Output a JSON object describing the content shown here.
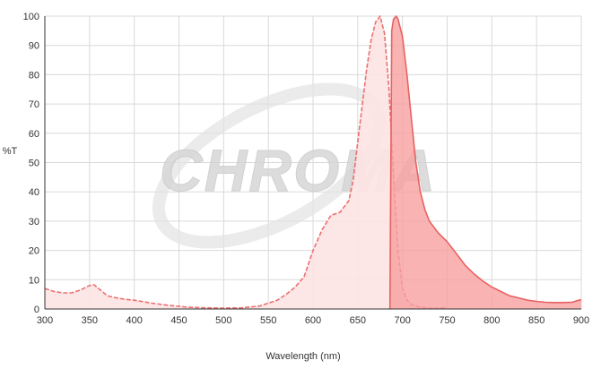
{
  "watermark": {
    "text": "CHROMA"
  },
  "colors": {
    "excitation_line": "#ec7070",
    "excitation_fill": "#fde3e3",
    "emission_line": "#e86262",
    "emission_fill": "#f8a0a0",
    "grid": "#d9d9d9",
    "axis": "#333333"
  },
  "chart_data": {
    "type": "area",
    "xlabel": "Wavelength (nm)",
    "ylabel": "%T",
    "xlim": [
      300,
      900
    ],
    "ylim": [
      0,
      100
    ],
    "x_ticks": [
      300,
      350,
      400,
      450,
      500,
      550,
      600,
      650,
      700,
      750,
      800,
      850,
      900
    ],
    "y_ticks": [
      0,
      10,
      20,
      30,
      40,
      50,
      60,
      70,
      80,
      90,
      100
    ],
    "grid": true,
    "legend": "none",
    "series": [
      {
        "style": "dashed",
        "x": [
          300,
          310,
          320,
          330,
          340,
          350,
          355,
          360,
          370,
          380,
          390,
          400,
          420,
          440,
          460,
          480,
          500,
          520,
          540,
          560,
          570,
          580,
          590,
          600,
          610,
          620,
          630,
          640,
          645,
          650,
          660,
          665,
          670,
          675,
          680,
          685,
          690,
          695,
          700,
          705,
          710,
          720,
          730,
          740,
          750
        ],
        "y": [
          7,
          6,
          5.5,
          5.5,
          6.5,
          8,
          8.3,
          7,
          4.5,
          3.8,
          3.3,
          3,
          2,
          1.2,
          0.6,
          0.4,
          0.3,
          0.4,
          1,
          3,
          5,
          7.5,
          11,
          20,
          27,
          32,
          33,
          37,
          44,
          57,
          82,
          92,
          98,
          100,
          94,
          75,
          45,
          20,
          7,
          3,
          1.5,
          0.6,
          0.3,
          0.3,
          0.5
        ]
      },
      {
        "style": "solid",
        "x": [
          686,
          688,
          690,
          693,
          695,
          700,
          705,
          710,
          715,
          720,
          725,
          730,
          740,
          750,
          760,
          770,
          780,
          790,
          800,
          810,
          820,
          830,
          840,
          850,
          860,
          870,
          880,
          890,
          895,
          900
        ],
        "y": [
          0,
          95,
          99,
          100,
          99,
          93,
          80,
          65,
          50,
          40,
          34,
          30,
          26,
          23,
          19,
          15,
          12,
          9.5,
          7.5,
          6,
          4.5,
          3.8,
          3,
          2.6,
          2.3,
          2.2,
          2.2,
          2.3,
          2.8,
          3.2
        ]
      }
    ]
  }
}
